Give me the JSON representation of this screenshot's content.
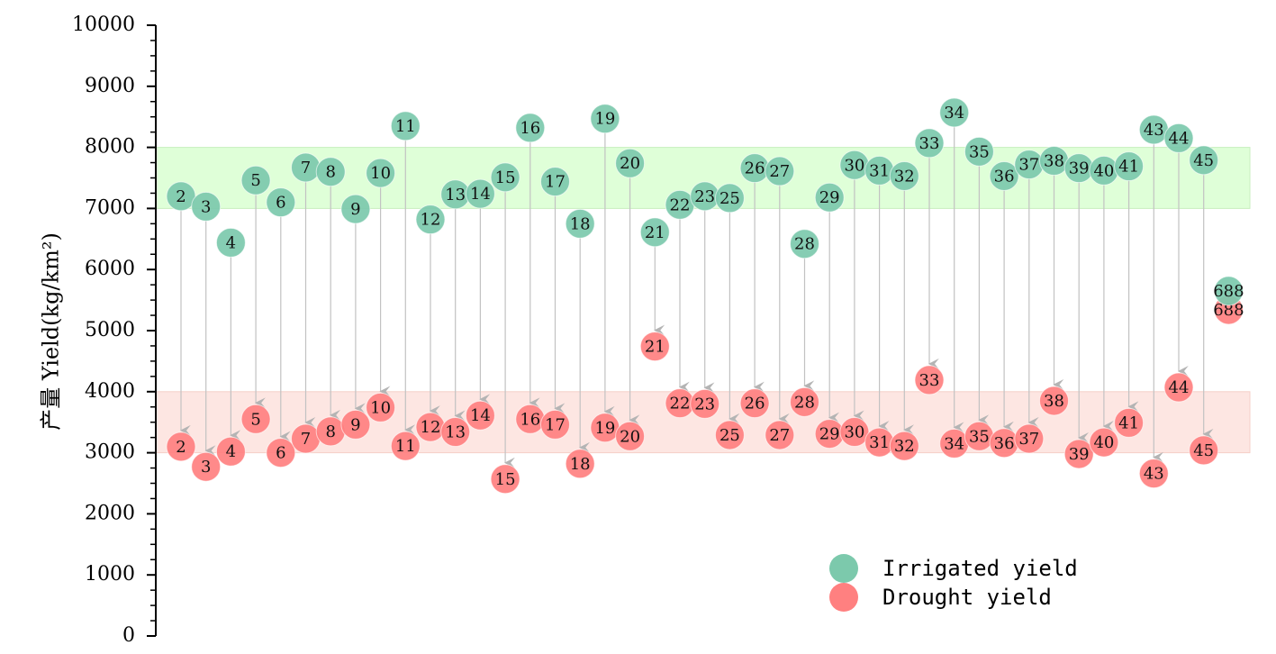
{
  "chart_data": {
    "type": "scatter",
    "ylabel": "产量 Yield(kg/km²)",
    "ylim": [
      0,
      10000
    ],
    "yticks": [
      "0",
      "1000",
      "2000",
      "3000",
      "4000",
      "5000",
      "6000",
      "7000",
      "8000",
      "9000",
      "10000"
    ],
    "bands": [
      {
        "name": "irrigated-band",
        "y0": 7000,
        "y1": 8000,
        "color": "#dfffd8"
      },
      {
        "name": "drought-band",
        "y0": 3000,
        "y1": 4000,
        "color": "#fde6e2"
      }
    ],
    "series": [
      {
        "name": "Irrigated yield",
        "color": "#7cc9ac",
        "labels": [
          "2",
          "3",
          "4",
          "5",
          "6",
          "7",
          "8",
          "9",
          "10",
          "11",
          "12",
          "13",
          "14",
          "15",
          "16",
          "17",
          "18",
          "19",
          "20",
          "21",
          "22",
          "23",
          "25",
          "26",
          "27",
          "28",
          "29",
          "30",
          "31",
          "32",
          "33",
          "34",
          "35",
          "36",
          "37",
          "38",
          "39",
          "40",
          "41",
          "43",
          "44",
          "45",
          "688"
        ],
        "values": [
          7200,
          7030,
          6440,
          7460,
          7100,
          7670,
          7600,
          6990,
          7580,
          8350,
          6820,
          7230,
          7240,
          7510,
          8320,
          7440,
          6750,
          8470,
          7740,
          6610,
          7060,
          7200,
          7170,
          7660,
          7610,
          6420,
          7180,
          7710,
          7620,
          7530,
          8070,
          8570,
          7930,
          7530,
          7720,
          7780,
          7660,
          7620,
          7690,
          8290,
          8150,
          7790,
          5650
        ]
      },
      {
        "name": "Drought yield",
        "color": "#ff8080",
        "labels": [
          "2",
          "3",
          "4",
          "5",
          "6",
          "7",
          "8",
          "9",
          "10",
          "11",
          "12",
          "13",
          "14",
          "15",
          "16",
          "17",
          "18",
          "19",
          "20",
          "21",
          "22",
          "23",
          "25",
          "26",
          "27",
          "28",
          "29",
          "30",
          "31",
          "32",
          "33",
          "34",
          "35",
          "36",
          "37",
          "38",
          "39",
          "40",
          "41",
          "43",
          "44",
          "45",
          "688"
        ],
        "values": [
          3100,
          2770,
          3020,
          3550,
          3000,
          3230,
          3350,
          3460,
          3740,
          3110,
          3420,
          3340,
          3610,
          2570,
          3550,
          3460,
          2820,
          3410,
          3270,
          4740,
          3810,
          3800,
          3290,
          3810,
          3290,
          3830,
          3310,
          3340,
          3170,
          3110,
          4190,
          3150,
          3270,
          3160,
          3230,
          3850,
          2980,
          3170,
          3490,
          2660,
          4070,
          3040,
          5340
        ]
      }
    ],
    "x": [
      1,
      2,
      3,
      4,
      5,
      6,
      7,
      8,
      9,
      10,
      11,
      12,
      13,
      14,
      15,
      16,
      17,
      18,
      19,
      20,
      21,
      22,
      23,
      24,
      25,
      26,
      27,
      28,
      29,
      30,
      31,
      32,
      33,
      34,
      35,
      36,
      37,
      38,
      39,
      40,
      41,
      42,
      43
    ],
    "xlim": [
      0.0,
      44.2
    ],
    "legend": {
      "position": "lower-right",
      "items": [
        {
          "label": "Irrigated yield",
          "color": "#7cc9ac"
        },
        {
          "label": "Drought yield",
          "color": "#ff8080"
        }
      ]
    }
  }
}
